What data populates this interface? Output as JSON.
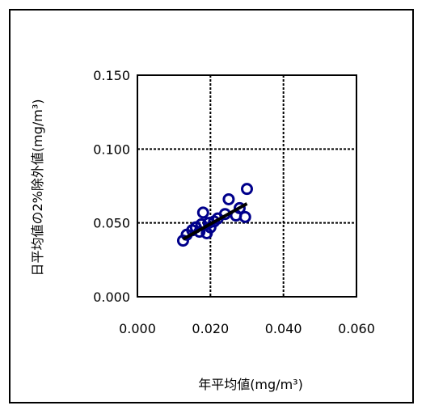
{
  "chart_data": {
    "type": "scatter",
    "xlabel": "年平均値(mg/m³)",
    "ylabel": "日平均値の2%除外値(mg/m³)",
    "xlim": [
      0.0,
      0.06
    ],
    "ylim": [
      0.0,
      0.15
    ],
    "xticks": [
      "0.000",
      "0.020",
      "0.040",
      "0.060"
    ],
    "yticks": [
      "0.000",
      "0.050",
      "0.100",
      "0.150"
    ],
    "grid": true,
    "marker_color": "#00008b",
    "trendline_color": "#000000",
    "points": [
      {
        "x": 0.0125,
        "y": 0.038
      },
      {
        "x": 0.0135,
        "y": 0.042
      },
      {
        "x": 0.015,
        "y": 0.045
      },
      {
        "x": 0.016,
        "y": 0.047
      },
      {
        "x": 0.017,
        "y": 0.044
      },
      {
        "x": 0.0175,
        "y": 0.049
      },
      {
        "x": 0.018,
        "y": 0.057
      },
      {
        "x": 0.019,
        "y": 0.043
      },
      {
        "x": 0.0195,
        "y": 0.05
      },
      {
        "x": 0.02,
        "y": 0.047
      },
      {
        "x": 0.021,
        "y": 0.051
      },
      {
        "x": 0.022,
        "y": 0.053
      },
      {
        "x": 0.024,
        "y": 0.056
      },
      {
        "x": 0.025,
        "y": 0.066
      },
      {
        "x": 0.027,
        "y": 0.055
      },
      {
        "x": 0.028,
        "y": 0.06
      },
      {
        "x": 0.0295,
        "y": 0.054
      },
      {
        "x": 0.03,
        "y": 0.073
      }
    ],
    "trendline": {
      "x": [
        0.0125,
        0.03
      ],
      "y": [
        0.039,
        0.063
      ]
    }
  }
}
